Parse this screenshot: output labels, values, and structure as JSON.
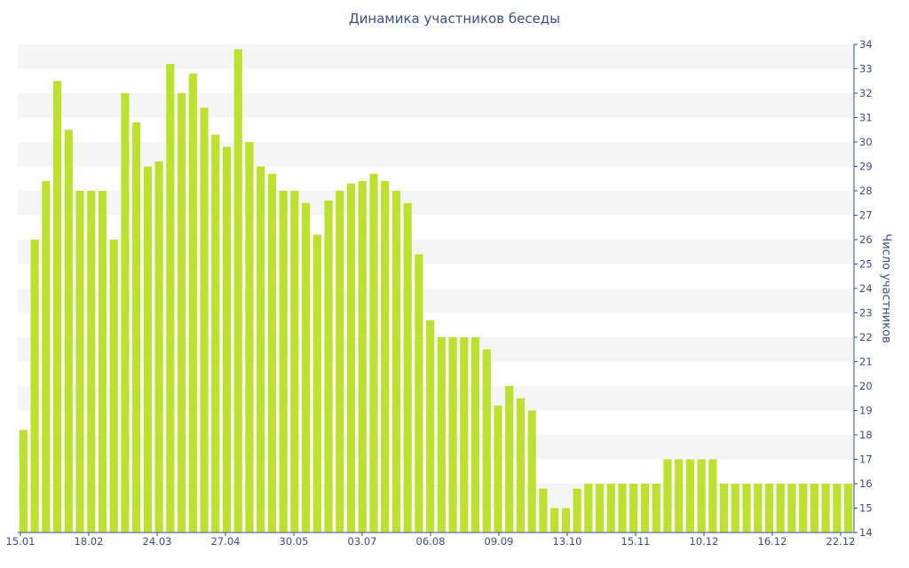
{
  "chart_data": {
    "type": "bar",
    "title": "Динамика участников беседы",
    "xlabel": "",
    "ylabel": "Число участников",
    "ylim": [
      14,
      34
    ],
    "y_ticks": [
      14,
      15,
      16,
      17,
      18,
      19,
      20,
      21,
      22,
      23,
      24,
      25,
      26,
      27,
      28,
      29,
      30,
      31,
      32,
      33,
      34
    ],
    "x_tick_labels": [
      "15.01",
      "18.02",
      "24.03",
      "27.04",
      "30.05",
      "03.07",
      "06.08",
      "09.09",
      "13.10",
      "15.11",
      "10.12",
      "16.12",
      "22.12"
    ],
    "bar_color": "#bde12f",
    "band_color": "#f5f5f5",
    "text_color": "#3a4f8f",
    "values": [
      18.2,
      26,
      28.4,
      32.5,
      30.5,
      28,
      28,
      28,
      26,
      32,
      30.8,
      29,
      29.2,
      33.2,
      32,
      32.8,
      31.4,
      30.3,
      29.8,
      33.8,
      30,
      29,
      28.7,
      28,
      28,
      27.5,
      26.2,
      27.6,
      28,
      28.3,
      28.4,
      28.7,
      28.4,
      28,
      27.5,
      25.4,
      22.7,
      22,
      22,
      22,
      22,
      21.5,
      19.2,
      20,
      19.5,
      19,
      15.8,
      15,
      15,
      15.8,
      16,
      16,
      16,
      16,
      16,
      16,
      16,
      17,
      17,
      17,
      17,
      17,
      16,
      16,
      16,
      16,
      16,
      16,
      16,
      16,
      16,
      16,
      16,
      16
    ]
  }
}
